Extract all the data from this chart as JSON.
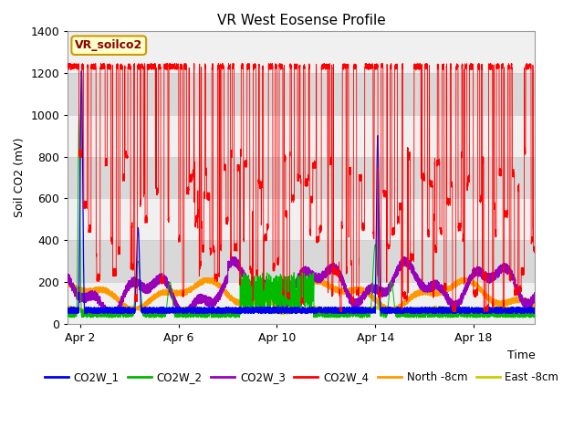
{
  "title": "VR West Eosense Profile",
  "ylabel": "Soil CO2 (mV)",
  "xlabel": "Time",
  "annotation": "VR_soilco2",
  "ylim": [
    0,
    1400
  ],
  "xlim_days": [
    0.5,
    19.5
  ],
  "xtick_labels": [
    "Apr 2",
    "Apr 6",
    "Apr 10",
    "Apr 14",
    "Apr 18"
  ],
  "xtick_positions": [
    1,
    5,
    9,
    13,
    17
  ],
  "ytick_positions": [
    0,
    200,
    400,
    600,
    800,
    1000,
    1200,
    1400
  ],
  "series_colors": {
    "CO2W_1": "#0000ee",
    "CO2W_2": "#00bb00",
    "CO2W_3": "#9900bb",
    "CO2W_4": "#ff0000",
    "North_8cm": "#ff9900",
    "East_8cm": "#cccc00"
  },
  "legend_labels": [
    "CO2W_1",
    "CO2W_2",
    "CO2W_3",
    "CO2W_4",
    "North -8cm",
    "East -8cm"
  ],
  "bg_color": "#ffffff",
  "plot_bg_light": "#f0f0f0",
  "plot_bg_dark": "#d8d8d8",
  "annotation_bg": "#ffffcc",
  "annotation_border": "#cc9900"
}
